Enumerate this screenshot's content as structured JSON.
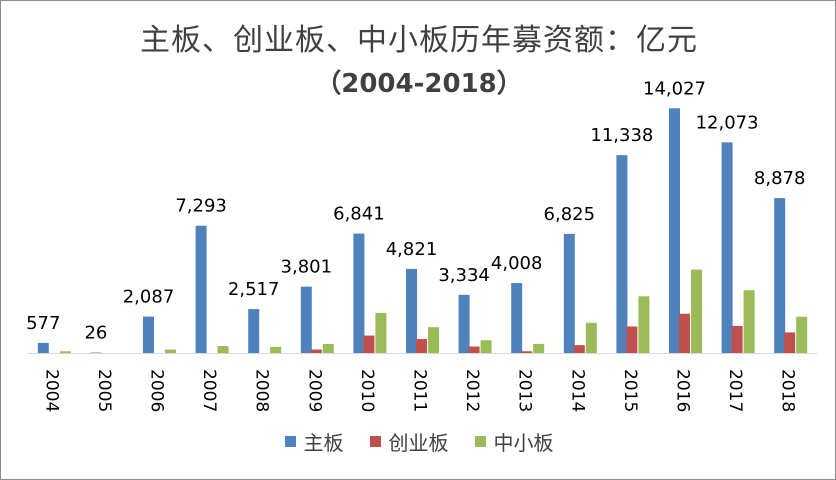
{
  "chart_data": {
    "type": "bar",
    "title": "主板、创业板、中小板历年募资额：亿元",
    "subtitle": "（2004-2018）",
    "categories": [
      "2004",
      "2005",
      "2006",
      "2007",
      "2008",
      "2009",
      "2010",
      "2011",
      "2012",
      "2013",
      "2014",
      "2015",
      "2016",
      "2017",
      "2018"
    ],
    "series": [
      {
        "name": "主板",
        "color": "#4F81BD",
        "values": [
          577,
          26,
          2087,
          7293,
          2517,
          3801,
          6841,
          4821,
          3334,
          4008,
          6825,
          11338,
          14027,
          12073,
          8878
        ]
      },
      {
        "name": "创业板",
        "color": "#C0504D",
        "values": [
          0,
          0,
          0,
          0,
          0,
          200,
          1000,
          800,
          370,
          100,
          450,
          1520,
          2250,
          1550,
          1180
        ]
      },
      {
        "name": "中小板",
        "color": "#9BBB59",
        "values": [
          100,
          0,
          200,
          400,
          350,
          520,
          2300,
          1480,
          730,
          520,
          1730,
          3250,
          4780,
          3600,
          2080
        ]
      }
    ],
    "data_labels": [
      "577",
      "26",
      "2,087",
      "7,293",
      "2,517",
      "3,801",
      "6,841",
      "4,821",
      "3,334",
      "4,008",
      "6,825",
      "11,338",
      "14,027",
      "12,073",
      "8,878"
    ],
    "ylim": [
      0,
      14500
    ],
    "legend_position": "bottom",
    "grid": false
  }
}
